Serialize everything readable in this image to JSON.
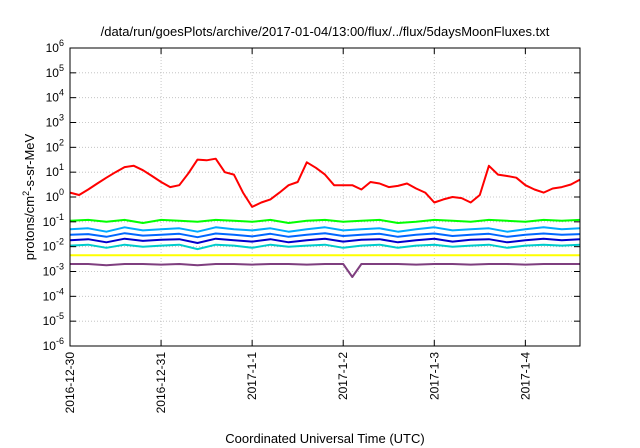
{
  "chart_data": {
    "type": "line",
    "title": "/data/run/goesPlots/archive/2017-01-04/13:00/flux/../flux/5daysMoonFluxes.txt",
    "xlabel": "Coordinated Universal Time (UTC)",
    "ylabel": "protons/cm²-s-sr-MeV",
    "yscale": "log",
    "ylim": [
      1e-06,
      1000000.0
    ],
    "xlim": [
      0,
      5.6
    ],
    "grid": true,
    "y_ticks": [
      {
        "exp": "-6",
        "value": 1e-06
      },
      {
        "exp": "-5",
        "value": 1e-05
      },
      {
        "exp": "-4",
        "value": 0.0001
      },
      {
        "exp": "-3",
        "value": 0.001
      },
      {
        "exp": "-2",
        "value": 0.01
      },
      {
        "exp": "-1",
        "value": 0.1
      },
      {
        "exp": "0",
        "value": 1
      },
      {
        "exp": "1",
        "value": 10
      },
      {
        "exp": "2",
        "value": 100
      },
      {
        "exp": "3",
        "value": 1000.0
      },
      {
        "exp": "4",
        "value": 10000.0
      },
      {
        "exp": "5",
        "value": 100000.0
      },
      {
        "exp": "6",
        "value": 1000000.0
      }
    ],
    "x_ticks": [
      {
        "label": "2016-12-30",
        "value": 0
      },
      {
        "label": "2016-12-31",
        "value": 1
      },
      {
        "label": "2017-1-1",
        "value": 2
      },
      {
        "label": "2017-1-2",
        "value": 3
      },
      {
        "label": "2017-1-3",
        "value": 4
      },
      {
        "label": "2017-1-4",
        "value": 5
      }
    ],
    "series": [
      {
        "color": "#ff0000",
        "x": [
          0,
          0.1,
          0.2,
          0.3,
          0.4,
          0.5,
          0.6,
          0.7,
          0.8,
          0.9,
          1.0,
          1.1,
          1.2,
          1.3,
          1.4,
          1.5,
          1.6,
          1.7,
          1.8,
          1.9,
          2.0,
          2.1,
          2.2,
          2.3,
          2.4,
          2.5,
          2.6,
          2.7,
          2.8,
          2.9,
          3.0,
          3.1,
          3.2,
          3.3,
          3.4,
          3.5,
          3.6,
          3.7,
          3.8,
          3.9,
          4.0,
          4.1,
          4.2,
          4.3,
          4.4,
          4.5,
          4.6,
          4.7,
          4.8,
          4.9,
          5.0,
          5.1,
          5.2,
          5.3,
          5.4,
          5.5,
          5.6
        ],
        "values": [
          1.5,
          1.2,
          2.0,
          3.5,
          6,
          10,
          16,
          18,
          12,
          7,
          4,
          2.5,
          3,
          9,
          32,
          30,
          35,
          10,
          8,
          1.5,
          0.4,
          0.6,
          0.8,
          1.5,
          3,
          4,
          25,
          15,
          8,
          3,
          3,
          3,
          2,
          4,
          3.5,
          2.5,
          2.8,
          3.5,
          2.2,
          1.5,
          0.6,
          0.8,
          1.0,
          0.9,
          0.6,
          1.2,
          18,
          8,
          7,
          6,
          3,
          2,
          1.5,
          2.2,
          2.5,
          3.2,
          5
        ]
      },
      {
        "color": "#00ff00",
        "x": [
          0,
          0.2,
          0.4,
          0.6,
          0.8,
          1.0,
          1.2,
          1.4,
          1.6,
          1.8,
          2.0,
          2.2,
          2.4,
          2.6,
          2.8,
          3.0,
          3.2,
          3.4,
          3.6,
          3.8,
          4.0,
          4.2,
          4.4,
          4.6,
          4.8,
          5.0,
          5.2,
          5.4,
          5.6
        ],
        "values": [
          0.11,
          0.12,
          0.1,
          0.12,
          0.09,
          0.12,
          0.11,
          0.1,
          0.12,
          0.11,
          0.1,
          0.12,
          0.09,
          0.11,
          0.12,
          0.1,
          0.11,
          0.12,
          0.09,
          0.1,
          0.12,
          0.11,
          0.1,
          0.12,
          0.11,
          0.1,
          0.12,
          0.11,
          0.12
        ]
      },
      {
        "color": "#00aaff",
        "x": [
          0,
          0.2,
          0.4,
          0.6,
          0.8,
          1.0,
          1.2,
          1.4,
          1.6,
          1.8,
          2.0,
          2.2,
          2.4,
          2.6,
          2.8,
          3.0,
          3.2,
          3.4,
          3.6,
          3.8,
          4.0,
          4.2,
          4.4,
          4.6,
          4.8,
          5.0,
          5.2,
          5.4,
          5.6
        ],
        "values": [
          0.05,
          0.055,
          0.04,
          0.06,
          0.045,
          0.05,
          0.055,
          0.04,
          0.06,
          0.05,
          0.045,
          0.055,
          0.04,
          0.05,
          0.06,
          0.045,
          0.05,
          0.055,
          0.04,
          0.05,
          0.06,
          0.045,
          0.05,
          0.055,
          0.04,
          0.05,
          0.06,
          0.05,
          0.055
        ]
      },
      {
        "color": "#0066ff",
        "x": [
          0,
          0.2,
          0.4,
          0.6,
          0.8,
          1.0,
          1.2,
          1.4,
          1.6,
          1.8,
          2.0,
          2.2,
          2.4,
          2.6,
          2.8,
          3.0,
          3.2,
          3.4,
          3.6,
          3.8,
          4.0,
          4.2,
          4.4,
          4.6,
          4.8,
          5.0,
          5.2,
          5.4,
          5.6
        ],
        "values": [
          0.03,
          0.032,
          0.025,
          0.035,
          0.028,
          0.03,
          0.033,
          0.024,
          0.034,
          0.03,
          0.026,
          0.033,
          0.025,
          0.03,
          0.035,
          0.027,
          0.03,
          0.033,
          0.025,
          0.03,
          0.034,
          0.027,
          0.03,
          0.033,
          0.025,
          0.03,
          0.034,
          0.03,
          0.032
        ]
      },
      {
        "color": "#0000cc",
        "x": [
          0,
          0.2,
          0.4,
          0.6,
          0.8,
          1.0,
          1.2,
          1.4,
          1.6,
          1.8,
          2.0,
          2.2,
          2.4,
          2.6,
          2.8,
          3.0,
          3.2,
          3.4,
          3.6,
          3.8,
          4.0,
          4.2,
          4.4,
          4.6,
          4.8,
          5.0,
          5.2,
          5.4,
          5.6
        ],
        "values": [
          0.018,
          0.02,
          0.015,
          0.021,
          0.017,
          0.019,
          0.02,
          0.014,
          0.021,
          0.018,
          0.016,
          0.02,
          0.015,
          0.018,
          0.021,
          0.016,
          0.019,
          0.02,
          0.015,
          0.018,
          0.021,
          0.016,
          0.019,
          0.02,
          0.015,
          0.018,
          0.021,
          0.018,
          0.02
        ]
      },
      {
        "color": "#00cccc",
        "x": [
          0,
          0.2,
          0.4,
          0.6,
          0.8,
          1.0,
          1.2,
          1.4,
          1.6,
          1.8,
          2.0,
          2.2,
          2.4,
          2.6,
          2.8,
          3.0,
          3.2,
          3.4,
          3.6,
          3.8,
          4.0,
          4.2,
          4.4,
          4.6,
          4.8,
          5.0,
          5.2,
          5.4,
          5.6
        ],
        "values": [
          0.011,
          0.012,
          0.009,
          0.012,
          0.01,
          0.011,
          0.012,
          0.008,
          0.012,
          0.011,
          0.009,
          0.012,
          0.01,
          0.011,
          0.012,
          0.009,
          0.011,
          0.012,
          0.009,
          0.011,
          0.012,
          0.01,
          0.011,
          0.012,
          0.009,
          0.011,
          0.012,
          0.011,
          0.012
        ]
      },
      {
        "color": "#ffff00",
        "x": [
          0,
          0.4,
          0.8,
          1.2,
          1.6,
          2.0,
          2.4,
          2.8,
          3.2,
          3.6,
          4.0,
          4.4,
          4.8,
          5.2,
          5.6
        ],
        "values": [
          0.0045,
          0.0045,
          0.0045,
          0.0045,
          0.0045,
          0.0045,
          0.0045,
          0.0045,
          0.0045,
          0.0045,
          0.0045,
          0.0045,
          0.0045,
          0.0045,
          0.0045
        ]
      },
      {
        "color": "#7f3f7f",
        "x": [
          0,
          0.2,
          0.4,
          0.6,
          0.8,
          1.0,
          1.2,
          1.4,
          1.6,
          1.8,
          2.0,
          2.2,
          2.4,
          2.6,
          2.8,
          3.0,
          3.1,
          3.2,
          3.4,
          3.6,
          3.8,
          4.0,
          4.2,
          4.4,
          4.6,
          4.8,
          5.0,
          5.2,
          5.4,
          5.6
        ],
        "values": [
          0.002,
          0.002,
          0.0018,
          0.002,
          0.002,
          0.0019,
          0.002,
          0.0018,
          0.002,
          0.002,
          0.0019,
          0.002,
          0.002,
          0.0019,
          0.002,
          0.002,
          0.0006,
          0.002,
          0.002,
          0.002,
          0.0019,
          0.002,
          0.002,
          0.0019,
          0.002,
          0.002,
          0.0019,
          0.002,
          0.002,
          0.002
        ]
      }
    ]
  }
}
